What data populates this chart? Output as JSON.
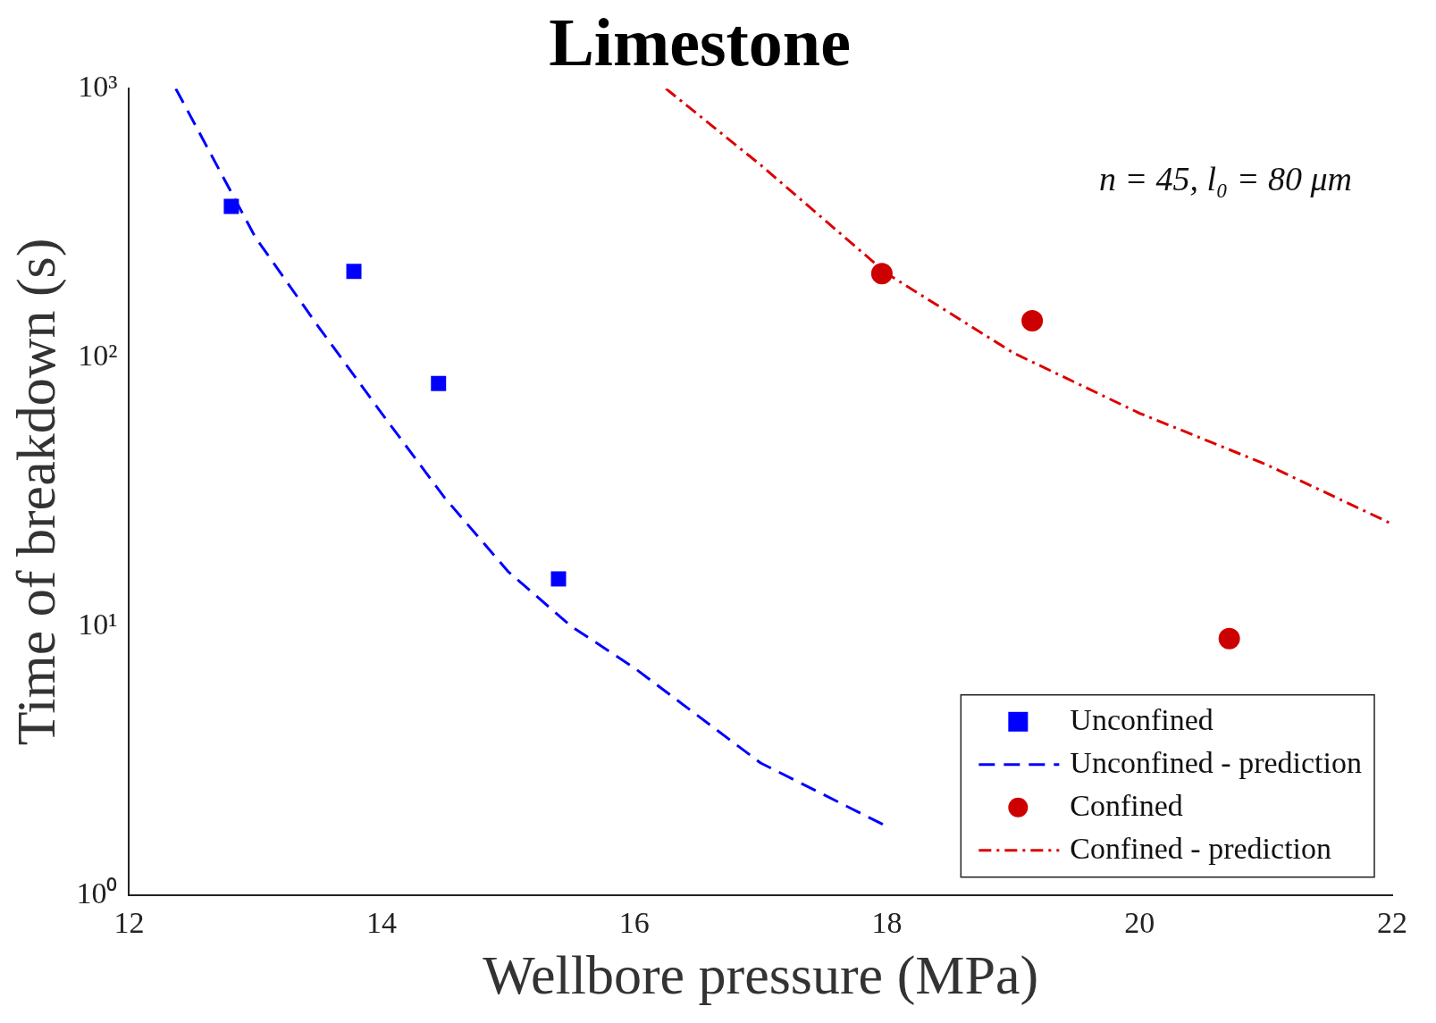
{
  "chart_data": {
    "type": "scatter",
    "title": "Limestone",
    "xlabel": "Wellbore pressure (MPa)",
    "ylabel": "Time of breakdown (s)",
    "annotations": [
      "n = 45, l₀ = 80 μm"
    ],
    "xlim": [
      12,
      22
    ],
    "xticks": [
      12,
      14,
      16,
      18,
      20,
      22
    ],
    "ylim": [
      1,
      1000
    ],
    "yticks": [
      {
        "value": 1,
        "label": "10⁰"
      },
      {
        "value": 10,
        "label": "10¹"
      },
      {
        "value": 100,
        "label": "10²"
      },
      {
        "value": 1000,
        "label": "10³"
      }
    ],
    "log": "y",
    "grid": false,
    "legend": "bottom right",
    "series": [
      {
        "name": "Unconfined",
        "marker": "square",
        "color": "#0000ff",
        "x": [
          12.81,
          13.78,
          14.45,
          15.4
        ],
        "values": [
          365,
          209,
          80,
          15
        ]
      },
      {
        "name": "Unconfined - prediction",
        "type": "line",
        "marker": "none",
        "line_style": "dashed",
        "color": "#0000ff",
        "x": [
          12.37,
          13,
          13.5,
          14,
          14.5,
          15,
          15.5,
          16,
          17,
          18
        ],
        "values": [
          1000,
          280,
          130,
          62,
          30,
          16,
          10,
          7,
          3.1,
          1.8
        ]
      },
      {
        "name": "Confined",
        "marker": "circle",
        "color": "#cc0000",
        "x": [
          17.96,
          19.15,
          20.71
        ],
        "values": [
          205,
          137,
          9
        ]
      },
      {
        "name": "Confined - prediction",
        "type": "line",
        "marker": "none",
        "line_style": "dashdot",
        "color": "#dd0000",
        "x": [
          16.25,
          17,
          18,
          19,
          20,
          21,
          22
        ],
        "values": [
          1000,
          520,
          205,
          104,
          62,
          40,
          24
        ]
      }
    ]
  }
}
